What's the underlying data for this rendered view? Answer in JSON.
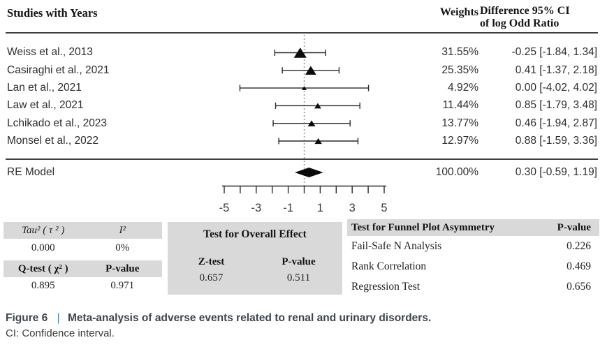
{
  "forest": {
    "header_left": "Studies with Years",
    "header_weights": "Weights",
    "header_diff_line1": "Difference 95% CI",
    "header_diff_line2": "of log Odd Ratio",
    "studies": [
      {
        "label": "Weiss et  al., 2013",
        "weight": "31.55%",
        "ci_text": "-0.25 [-1.84, 1.34]"
      },
      {
        "label": "Casiraghi  et al., 2021",
        "weight": "25.35%",
        "ci_text": "0.41 [-1.37, 2.18]"
      },
      {
        "label": "Lan et al., 2021",
        "weight": "4.92%",
        "ci_text": "0.00 [-4.02, 4.02]"
      },
      {
        "label": "Law et al., 2021",
        "weight": "11.44%",
        "ci_text": "0.85 [-1.79, 3.48]"
      },
      {
        "label": "Lchikado et al., 2023",
        "weight": "13.77%",
        "ci_text": "0.46 [-1.94, 2.87]"
      },
      {
        "label": "Monsel et al., 2022",
        "weight": "12.97%",
        "ci_text": "0.88 [-1.59, 3.36]"
      }
    ],
    "summary_row": {
      "label": "RE Model",
      "weight": "100.00%",
      "ci_text": "0.30 [-0.59, 1.19]"
    }
  },
  "stats": {
    "heterogeneity": {
      "tau_label": "Tau² ( τ ² )",
      "i2_label": "I²",
      "tau_value": "0.000",
      "i2_value": "0%",
      "q_label": "Q-test ( χ² )",
      "qp_label": "P-value",
      "q_value": "0.895",
      "qp_value": "0.971"
    },
    "overall": {
      "title": "Test for Overall Effect",
      "z_label": "Z-test",
      "p_label": "P-value",
      "z_value": "0.657",
      "p_value": "0.511"
    },
    "funnel": {
      "title": "Test for Funnel Plot Asymmetry",
      "p_header": "P-value",
      "rows": [
        {
          "label": "Fail-Safe N Analysis",
          "value": "0.226"
        },
        {
          "label": "Rank Correlation",
          "value": "0.469"
        },
        {
          "label": "Regression Test",
          "value": "0.656"
        }
      ]
    }
  },
  "caption": {
    "figure_label": "Figure 6",
    "separator": "|",
    "title": "Meta-analysis of adverse events related to renal and urinary disorders.",
    "note": "CI: Confidence interval."
  },
  "colors": {
    "caption_text": "#3e464b",
    "caption_pipe": "#4e87a8",
    "band_gray": "#d9d9d9",
    "marker_black": "#0b0b0b"
  },
  "chart_data": {
    "type": "scatter",
    "subtype": "forest-plot",
    "title": "Meta-analysis of adverse events related to renal and urinary disorders",
    "xlabel": "Difference of log Odd Ratio",
    "xlim": [
      -5,
      5
    ],
    "x_ticks": [
      -5,
      -4,
      -3,
      -2,
      -1,
      0,
      1,
      2,
      3,
      4,
      5
    ],
    "x_tick_labels": [
      "-5",
      "-3",
      "-1",
      "1",
      "3",
      "5"
    ],
    "reference_line_x": 0,
    "grid": false,
    "series": [
      {
        "name": "Weiss et al., 2013",
        "estimate": -0.25,
        "ci": [
          -1.84,
          1.34
        ],
        "weight_pct": 31.55
      },
      {
        "name": "Casiraghi et al., 2021",
        "estimate": 0.41,
        "ci": [
          -1.37,
          2.18
        ],
        "weight_pct": 25.35
      },
      {
        "name": "Lan et al., 2021",
        "estimate": 0.0,
        "ci": [
          -4.02,
          4.02
        ],
        "weight_pct": 4.92
      },
      {
        "name": "Law et al., 2021",
        "estimate": 0.85,
        "ci": [
          -1.79,
          3.48
        ],
        "weight_pct": 11.44
      },
      {
        "name": "Lchikado et al., 2023",
        "estimate": 0.46,
        "ci": [
          -1.94,
          2.87
        ],
        "weight_pct": 13.77
      },
      {
        "name": "Monsel et al., 2022",
        "estimate": 0.88,
        "ci": [
          -1.59,
          3.36
        ],
        "weight_pct": 12.97
      }
    ],
    "summary": {
      "name": "RE Model",
      "estimate": 0.3,
      "ci": [
        -0.59,
        1.19
      ],
      "weight_pct": 100.0
    }
  }
}
